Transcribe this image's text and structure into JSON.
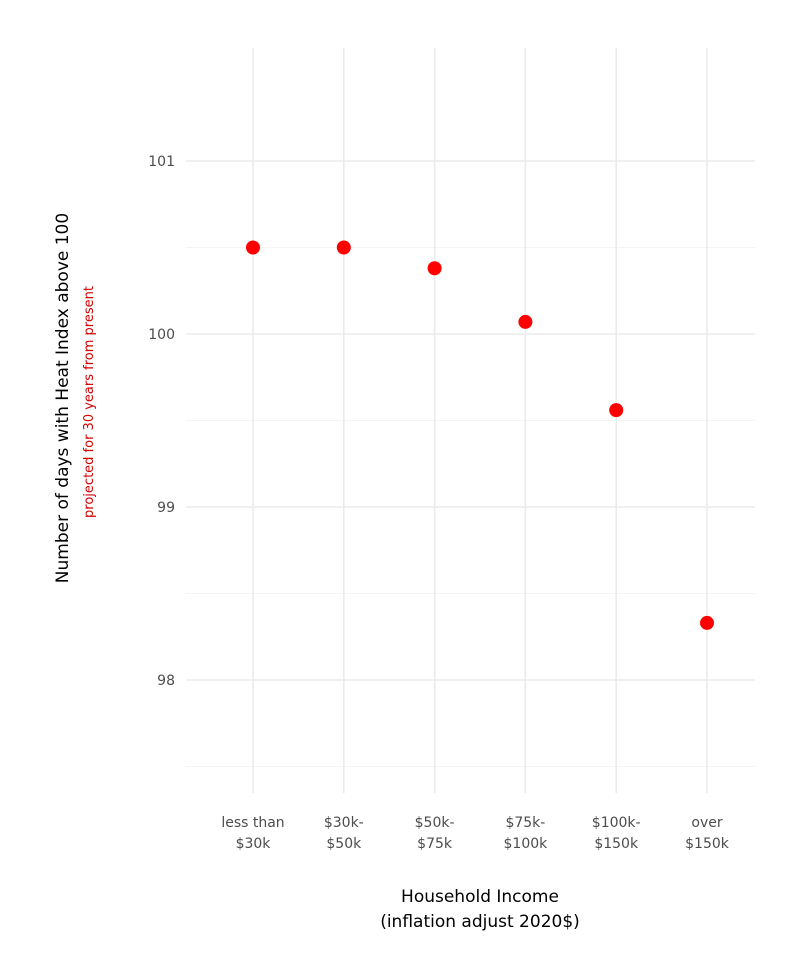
{
  "chart_data": {
    "type": "scatter",
    "title": "",
    "categories": [
      [
        "less than",
        "$30k"
      ],
      [
        "$30k-",
        "$50k"
      ],
      [
        "$50k-",
        "$75k"
      ],
      [
        "$75k-",
        "$100k"
      ],
      [
        "$100k-",
        "$150k"
      ],
      [
        "over",
        "$150k"
      ]
    ],
    "values": [
      100.5,
      100.5,
      100.38,
      100.07,
      99.56,
      98.33
    ],
    "ylim": [
      97.5,
      101.35
    ],
    "yticks": [
      98,
      99,
      100,
      101
    ],
    "xlabel": [
      "Household Income",
      "(inflation adjust 2020$)"
    ],
    "ylabel": "Number of days with Heat Index above 100",
    "ylabel_sub": "projected for 30 years from present",
    "grid": true,
    "legend": "none",
    "colors": {
      "point": "#ff0000",
      "subtitle": "#d40000",
      "grid_major": "#ebebeb",
      "grid_minor": "#f4f4f4"
    }
  }
}
